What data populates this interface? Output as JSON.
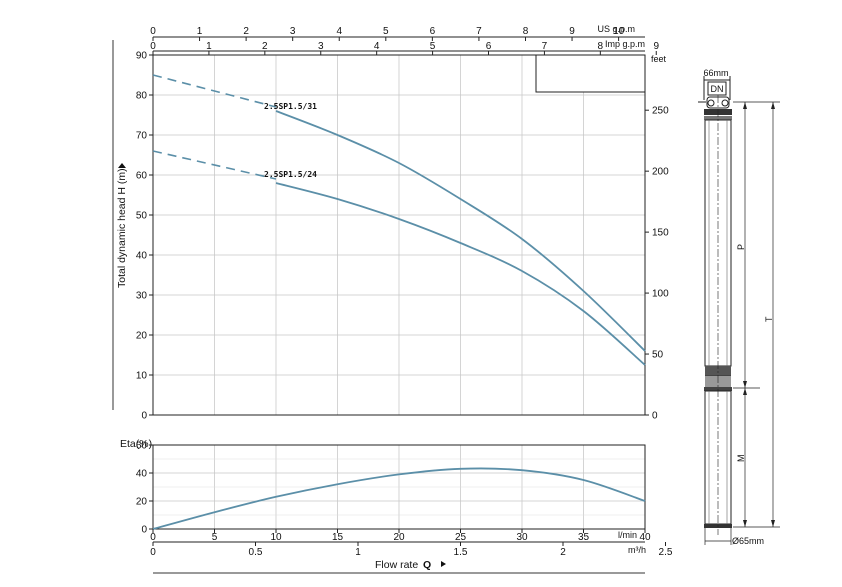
{
  "chart_data": [
    {
      "type": "line",
      "ylabel": "Total dynamic head H (m)",
      "ylim": [
        0,
        90
      ],
      "yticks": [
        "0",
        "10",
        "20",
        "30",
        "40",
        "50",
        "60",
        "70",
        "80",
        "90"
      ],
      "xlim": [
        0,
        40
      ],
      "grid": true,
      "right_axis": {
        "label": "feet",
        "ticks": [
          "0",
          "50",
          "100",
          "150",
          "200",
          "250"
        ]
      },
      "top_axis_us": {
        "label": "US g.p.m",
        "ticks": [
          "0",
          "1",
          "2",
          "3",
          "4",
          "5",
          "6",
          "7",
          "8",
          "9",
          "10"
        ]
      },
      "top_axis_imp": {
        "label": "Imp g.p.m",
        "ticks": [
          "0",
          "1",
          "2",
          "3",
          "4",
          "5",
          "6",
          "7",
          "8",
          "9"
        ]
      },
      "series": [
        {
          "name": "2.5SP1.5/31",
          "color": "#5b8fa8",
          "dashed": {
            "x": [
              0,
              10
            ],
            "y": [
              85,
              77
            ]
          },
          "x": [
            10,
            15,
            20,
            25,
            30,
            35,
            40
          ],
          "y": [
            76,
            70,
            63,
            54,
            44,
            31,
            16
          ]
        },
        {
          "name": "2.5SP1.5/24",
          "color": "#5b8fa8",
          "dashed": {
            "x": [
              0,
              10
            ],
            "y": [
              66,
              59
            ]
          },
          "x": [
            10,
            15,
            20,
            25,
            30,
            35,
            40
          ],
          "y": [
            58,
            54,
            49,
            43,
            36,
            26,
            12.5
          ]
        }
      ]
    },
    {
      "type": "line",
      "ylabel": "Eta(%)",
      "ylim": [
        0,
        60
      ],
      "yticks": [
        "0",
        "20",
        "40",
        "60"
      ],
      "xlim": [
        0,
        40
      ],
      "grid": true,
      "series": [
        {
          "color": "#5b8fa8",
          "x": [
            0,
            5,
            10,
            15,
            20,
            25,
            30,
            35,
            40
          ],
          "y": [
            0,
            12,
            23,
            32,
            39,
            43,
            42,
            35,
            20
          ]
        }
      ]
    }
  ],
  "bottom_axis": {
    "lmin_label": "l/min",
    "lmin_ticks": [
      "0",
      "5",
      "10",
      "15",
      "20",
      "25",
      "30",
      "35",
      "40"
    ],
    "m3h_label": "m³/h",
    "m3h_ticks": [
      "0",
      "0.5",
      "1",
      "1.5",
      "2",
      "2.5"
    ],
    "title_text": "Flow rate",
    "title_symbol": "Q"
  },
  "pump_drawing": {
    "width_label": "66mm",
    "dn_label": "DN",
    "p_label": "P",
    "t_label": "T",
    "m_label": "M",
    "diameter_label": "Ø65mm"
  }
}
